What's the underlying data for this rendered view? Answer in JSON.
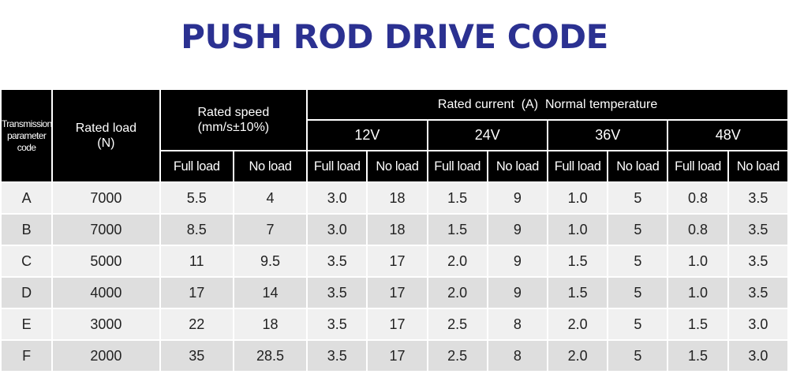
{
  "title": "PUSH ROD DRIVE CODE",
  "headers": {
    "code": [
      "Transmission",
      "parameter",
      "code"
    ],
    "rated_load": [
      "Rated load",
      "(N)"
    ],
    "rated_speed": [
      "Rated speed",
      "(mm/s±10%)"
    ],
    "rated_current": "Rated current  (A)  Normal temperature",
    "voltages": [
      "12V",
      "24V",
      "36V",
      "48V"
    ],
    "full_load": "Full load",
    "no_load": "No load"
  },
  "rows": [
    {
      "code": "A",
      "load": "7000",
      "speed_full": "5.5",
      "speed_no": "4",
      "v12_full": "3.0",
      "v12_no": "18",
      "v24_full": "1.5",
      "v24_no": "9",
      "v36_full": "1.0",
      "v36_no": "5",
      "v48_full": "0.8",
      "v48_no": "3.5"
    },
    {
      "code": "B",
      "load": "7000",
      "speed_full": "8.5",
      "speed_no": "7",
      "v12_full": "3.0",
      "v12_no": "18",
      "v24_full": "1.5",
      "v24_no": "9",
      "v36_full": "1.0",
      "v36_no": "5",
      "v48_full": "0.8",
      "v48_no": "3.5"
    },
    {
      "code": "C",
      "load": "5000",
      "speed_full": "11",
      "speed_no": "9.5",
      "v12_full": "3.5",
      "v12_no": "17",
      "v24_full": "2.0",
      "v24_no": "9",
      "v36_full": "1.5",
      "v36_no": "5",
      "v48_full": "1.0",
      "v48_no": "3.5"
    },
    {
      "code": "D",
      "load": "4000",
      "speed_full": "17",
      "speed_no": "14",
      "v12_full": "3.5",
      "v12_no": "17",
      "v24_full": "2.0",
      "v24_no": "9",
      "v36_full": "1.5",
      "v36_no": "5",
      "v48_full": "1.0",
      "v48_no": "3.5"
    },
    {
      "code": "E",
      "load": "3000",
      "speed_full": "22",
      "speed_no": "18",
      "v12_full": "3.5",
      "v12_no": "17",
      "v24_full": "2.5",
      "v24_no": "8",
      "v36_full": "2.0",
      "v36_no": "5",
      "v48_full": "1.5",
      "v48_no": "3.0"
    },
    {
      "code": "F",
      "load": "2000",
      "speed_full": "35",
      "speed_no": "28.5",
      "v12_full": "3.5",
      "v12_no": "17",
      "v24_full": "2.5",
      "v24_no": "8",
      "v36_full": "2.0",
      "v36_no": "5",
      "v48_full": "1.5",
      "v48_no": "3.0"
    }
  ]
}
